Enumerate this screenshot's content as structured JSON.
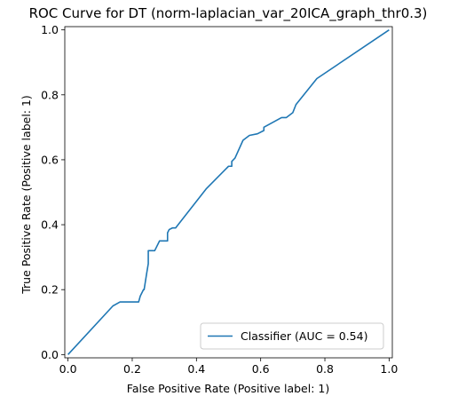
{
  "chart_data": {
    "type": "line",
    "title": "ROC Curve for DT (norm-laplacian_var_20ICA_graph_thr0.3)",
    "xlabel": "False Positive Rate (Positive label: 1)",
    "ylabel": "True Positive Rate (Positive label: 1)",
    "xlim": [
      -0.01,
      1.01
    ],
    "ylim": [
      -0.01,
      1.01
    ],
    "xticks": [
      "0.0",
      "0.2",
      "0.4",
      "0.6",
      "0.8",
      "1.0"
    ],
    "yticks": [
      "0.0",
      "0.2",
      "0.4",
      "0.6",
      "0.8",
      "1.0"
    ],
    "grid": false,
    "legend_position": "lower-right",
    "series": [
      {
        "name": "Classifier (AUC = 0.54)",
        "color": "#1f77b4",
        "x": [
          0.0,
          0.14,
          0.162,
          0.22,
          0.225,
          0.235,
          0.237,
          0.245,
          0.25,
          0.25,
          0.27,
          0.285,
          0.31,
          0.31,
          0.315,
          0.325,
          0.335,
          0.43,
          0.5,
          0.51,
          0.51,
          0.52,
          0.545,
          0.565,
          0.59,
          0.61,
          0.61,
          0.665,
          0.68,
          0.7,
          0.71,
          0.775,
          1.0
        ],
        "y": [
          0.0,
          0.15,
          0.162,
          0.162,
          0.18,
          0.2,
          0.2,
          0.25,
          0.28,
          0.32,
          0.32,
          0.35,
          0.35,
          0.375,
          0.385,
          0.39,
          0.39,
          0.51,
          0.58,
          0.58,
          0.595,
          0.605,
          0.66,
          0.675,
          0.68,
          0.69,
          0.7,
          0.73,
          0.73,
          0.745,
          0.77,
          0.85,
          1.0
        ]
      }
    ]
  }
}
